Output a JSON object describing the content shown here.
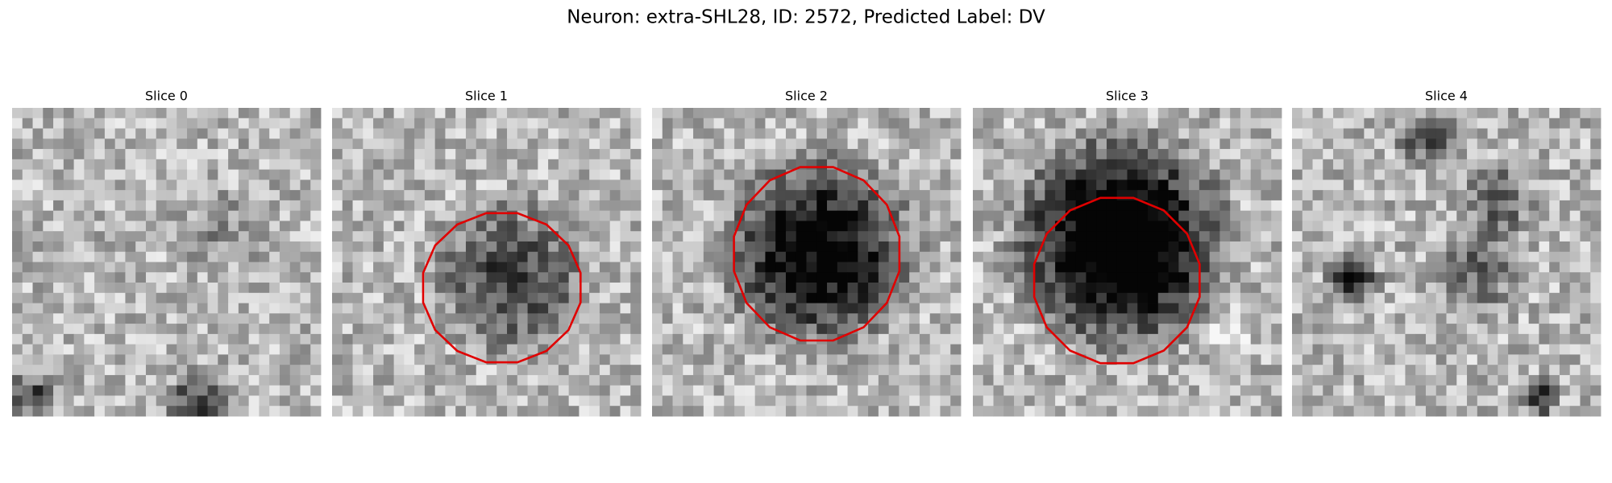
{
  "title": "Neuron: extra-SHL28, ID: 2572, Predicted Label: DV",
  "panels": [
    {
      "title": "Slice 0"
    },
    {
      "title": "Slice 1"
    },
    {
      "title": "Slice 2"
    },
    {
      "title": "Slice 3"
    },
    {
      "title": "Slice 4"
    }
  ]
}
